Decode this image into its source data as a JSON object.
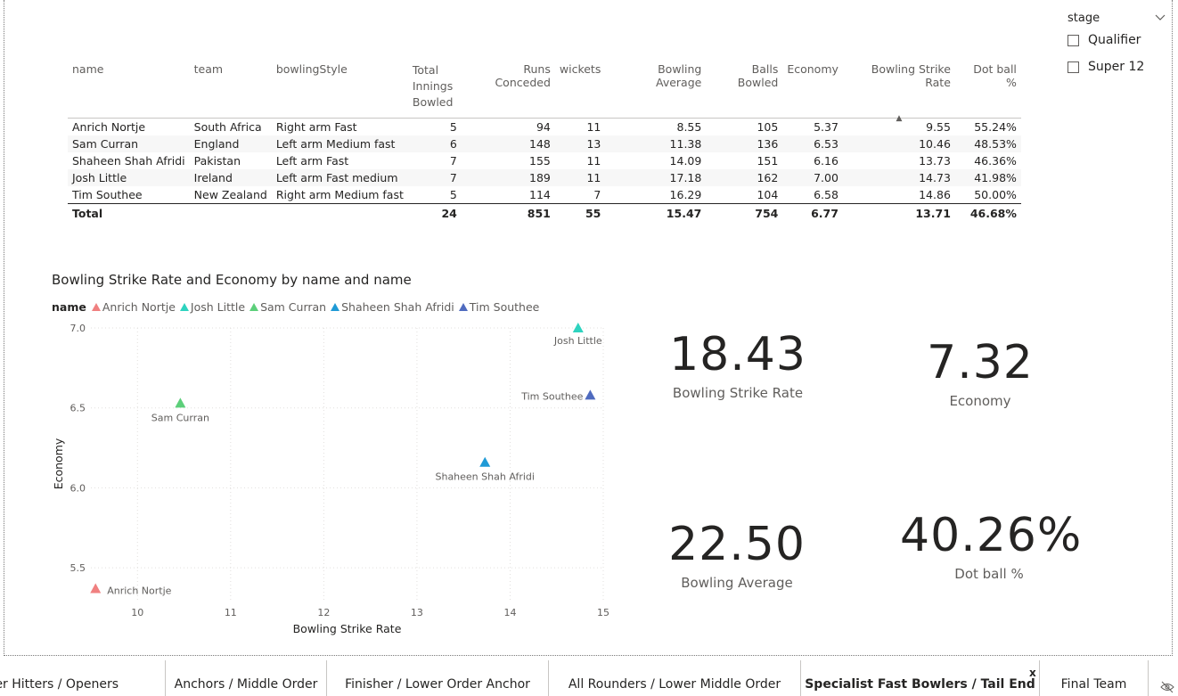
{
  "slicer": {
    "title": "stage",
    "options": [
      "Qualifier",
      "Super 12"
    ]
  },
  "table": {
    "headers": [
      "name",
      "team",
      "bowlingStyle",
      "Total Innings Bowled",
      "Runs Conceded",
      "wickets",
      "Bowling Average",
      "Balls Bowled",
      "Economy",
      "Bowling Strike Rate",
      "Dot ball %"
    ],
    "rows": [
      [
        "Anrich Nortje",
        "South Africa",
        "Right arm Fast",
        "5",
        "94",
        "11",
        "8.55",
        "105",
        "5.37",
        "9.55",
        "55.24%"
      ],
      [
        "Sam Curran",
        "England",
        "Left arm Medium fast",
        "6",
        "148",
        "13",
        "11.38",
        "136",
        "6.53",
        "10.46",
        "48.53%"
      ],
      [
        "Shaheen Shah Afridi",
        "Pakistan",
        "Left arm Fast",
        "7",
        "155",
        "11",
        "14.09",
        "151",
        "6.16",
        "13.73",
        "46.36%"
      ],
      [
        "Josh Little",
        "Ireland",
        "Left arm Fast medium",
        "7",
        "189",
        "11",
        "17.18",
        "162",
        "7.00",
        "14.73",
        "41.98%"
      ],
      [
        "Tim Southee",
        "New Zealand",
        "Right arm Medium fast",
        "5",
        "114",
        "7",
        "16.29",
        "104",
        "6.58",
        "14.86",
        "50.00%"
      ]
    ],
    "total": [
      "Total",
      "",
      "",
      "24",
      "851",
      "55",
      "15.47",
      "754",
      "6.77",
      "13.71",
      "46.68%"
    ]
  },
  "chart_data": {
    "type": "scatter",
    "title": "Bowling Strike Rate and Economy by name and name",
    "xlabel": "Bowling Strike Rate",
    "ylabel": "Economy",
    "legend_title": "name",
    "xlim": [
      9.5,
      15
    ],
    "ylim": [
      5.3,
      7.0
    ],
    "xticks": [
      10,
      11,
      12,
      13,
      14,
      15
    ],
    "yticks": [
      5.5,
      6.0,
      6.5,
      7.0
    ],
    "xtick_labels": [
      "10",
      "11",
      "12",
      "13",
      "14",
      "15"
    ],
    "ytick_labels": [
      "5.5",
      "6.0",
      "6.5",
      "7.0"
    ],
    "points": [
      {
        "name": "Anrich Nortje",
        "x": 9.55,
        "y": 5.37,
        "color": "#f08080"
      },
      {
        "name": "Josh Little",
        "x": 14.73,
        "y": 7.0,
        "color": "#2ed3bf"
      },
      {
        "name": "Sam Curran",
        "x": 10.46,
        "y": 6.53,
        "color": "#5ccf7a"
      },
      {
        "name": "Shaheen Shah Afridi",
        "x": 13.73,
        "y": 6.16,
        "color": "#1f9ad6"
      },
      {
        "name": "Tim Southee",
        "x": 14.86,
        "y": 6.58,
        "color": "#4f6bbf"
      }
    ]
  },
  "cards": {
    "strike_rate": {
      "value": "18.43",
      "label": "Bowling Strike Rate"
    },
    "economy": {
      "value": "7.32",
      "label": "Economy"
    },
    "average": {
      "value": "22.50",
      "label": "Bowling Average"
    },
    "dot_ball": {
      "value": "40.26%",
      "label": "Dot ball %"
    }
  },
  "tabs": [
    "ower Hitters / Openers",
    "Anchors / Middle Order",
    "Finisher / Lower Order Anchor",
    "All Rounders / Lower Middle Order",
    "Specialist Fast Bowlers / Tail End",
    "Final Team"
  ],
  "active_tab_close": "x"
}
